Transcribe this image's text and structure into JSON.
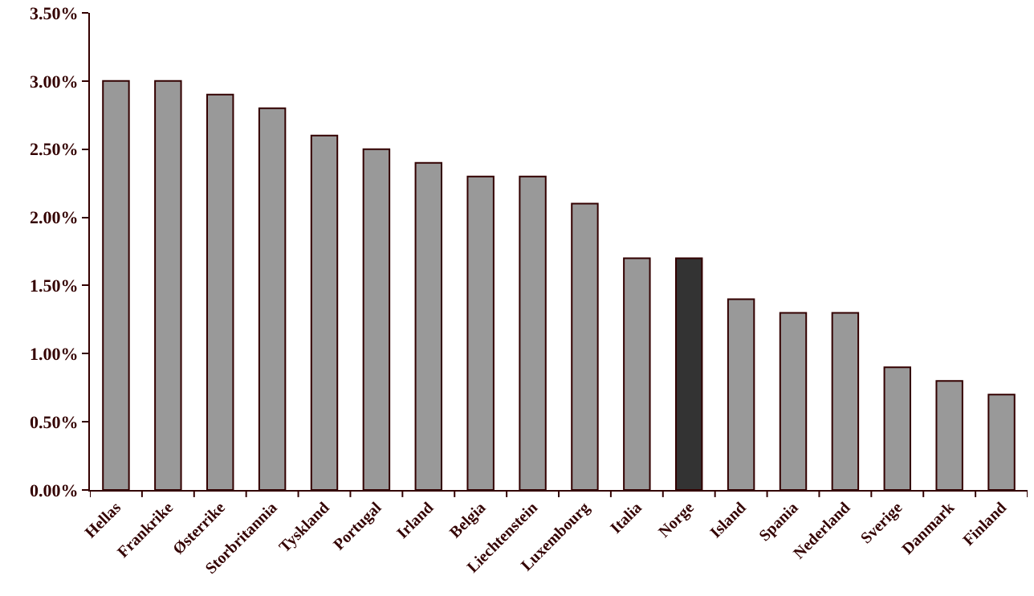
{
  "chart_data": {
    "type": "bar",
    "categories": [
      "Hellas",
      "Frankrike",
      "Østerrike",
      "Storbritannia",
      "Tyskland",
      "Portugal",
      "Irland",
      "Belgia",
      "Liechtenstein",
      "Luxembourg",
      "Italia",
      "Norge",
      "Island",
      "Spania",
      "Nederland",
      "Sverige",
      "Danmark",
      "Finland"
    ],
    "values": [
      3.0,
      3.0,
      2.9,
      2.8,
      2.6,
      2.5,
      2.4,
      2.3,
      2.3,
      2.1,
      1.7,
      1.7,
      1.4,
      1.3,
      1.3,
      0.9,
      0.8,
      0.7
    ],
    "colors": [
      "#999999",
      "#999999",
      "#999999",
      "#999999",
      "#999999",
      "#999999",
      "#999999",
      "#999999",
      "#999999",
      "#999999",
      "#999999",
      "#333333",
      "#999999",
      "#999999",
      "#999999",
      "#999999",
      "#999999",
      "#999999"
    ],
    "ylim": [
      0,
      3.5
    ],
    "yticks": [
      {
        "value": 0,
        "label": "0.00%"
      },
      {
        "value": 0.5,
        "label": "0.50%"
      },
      {
        "value": 1,
        "label": "1.00%"
      },
      {
        "value": 1.5,
        "label": "1.50%"
      },
      {
        "value": 2,
        "label": "2.00%"
      },
      {
        "value": 2.5,
        "label": "2.50%"
      },
      {
        "value": 3,
        "label": "3.00%"
      },
      {
        "value": 3.5,
        "label": "3.50%"
      }
    ]
  }
}
